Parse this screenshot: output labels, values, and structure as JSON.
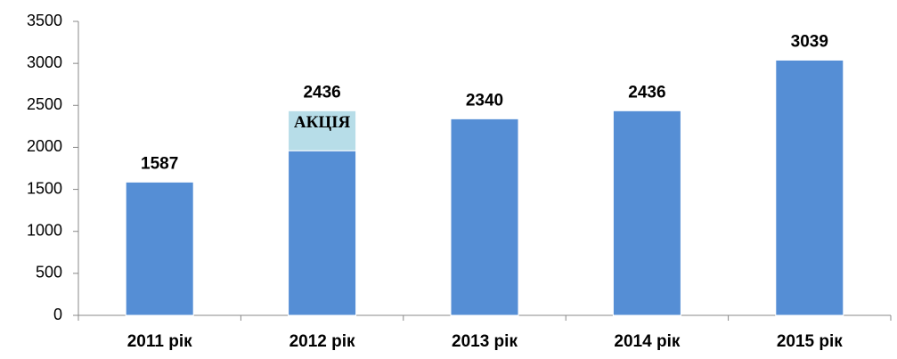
{
  "chart_data": {
    "type": "bar",
    "stacked": true,
    "categories": [
      "2011 рік",
      "2012 рік",
      "2013 рік",
      "2014 рік",
      "2015 рік"
    ],
    "series": [
      {
        "color": "#558ed5",
        "values": [
          1587,
          1960,
          2340,
          2436,
          3039
        ]
      },
      {
        "name": "АКЦІЯ",
        "color": "#b7dde8",
        "values": [
          null,
          476,
          null,
          null,
          null
        ]
      }
    ],
    "totals": [
      1587,
      2436,
      2340,
      2436,
      3039
    ],
    "ylim": [
      0,
      3500
    ],
    "yticks": [
      0,
      500,
      1000,
      1500,
      2000,
      2500,
      3000,
      3500
    ]
  }
}
